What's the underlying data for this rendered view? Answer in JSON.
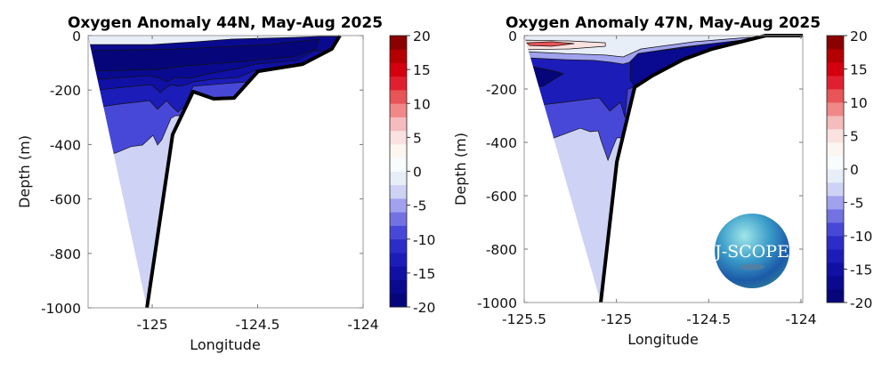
{
  "chart_data": [
    {
      "type": "filled-contour",
      "title": "Oxygen Anomaly 44N, May-Aug 2025",
      "xlabel": "Longitude",
      "ylabel": "Depth (m)",
      "xlim": [
        -125.304,
        -124.0
      ],
      "ylim": [
        -1000,
        0
      ],
      "xticks": [
        -125,
        -124.5,
        -124
      ],
      "xtick_labels": [
        "-125",
        "-124.5",
        "-124"
      ],
      "yticks": [
        0,
        -200,
        -400,
        -600,
        -800,
        -1000
      ],
      "ytick_labels": [
        "0",
        "-200",
        "-400",
        "-600",
        "-800",
        "-1000"
      ],
      "base_level": -3,
      "bathymetry": [
        [
          -125.304,
          0
        ],
        [
          -124.11,
          0
        ],
        [
          -124.148,
          -49
        ],
        [
          -124.287,
          -105
        ],
        [
          -124.498,
          -131
        ],
        [
          -124.612,
          -229
        ],
        [
          -124.709,
          -232
        ],
        [
          -124.806,
          -206
        ],
        [
          -124.903,
          -363
        ],
        [
          -125.025,
          -1000
        ]
      ],
      "layers": [
        {
          "level": -9,
          "boundary": [
            [
              -125.3,
              -451
            ],
            [
              -125.173,
              -431
            ],
            [
              -125.101,
              -408
            ],
            [
              -125.046,
              -402
            ],
            [
              -124.996,
              -366
            ],
            [
              -124.975,
              -402
            ],
            [
              -124.954,
              -382
            ],
            [
              -124.911,
              -304
            ],
            [
              -124.89,
              -294
            ]
          ]
        },
        {
          "level": -13,
          "boundary": [
            [
              -125.3,
              -268
            ],
            [
              -125.16,
              -252
            ],
            [
              -125.013,
              -239
            ],
            [
              -124.975,
              -271
            ],
            [
              -124.932,
              -239
            ],
            [
              -124.907,
              -261
            ],
            [
              -124.878,
              -281
            ],
            [
              -124.848,
              -261
            ],
            [
              -124.806,
              -186
            ],
            [
              -124.553,
              -170
            ],
            [
              -124.527,
              -154
            ]
          ]
        },
        {
          "level": -15,
          "boundary": [
            [
              -125.3,
              -203
            ],
            [
              -125.089,
              -186
            ],
            [
              -125.004,
              -180
            ],
            [
              -124.962,
              -209
            ],
            [
              -124.932,
              -190
            ],
            [
              -124.907,
              -180
            ],
            [
              -124.878,
              -186
            ],
            [
              -124.835,
              -180
            ],
            [
              -124.806,
              -170
            ],
            [
              -124.709,
              -160
            ],
            [
              -124.595,
              -154
            ],
            [
              -124.54,
              -137
            ],
            [
              -124.511,
              -127
            ]
          ]
        },
        {
          "level": -17,
          "boundary": [
            [
              -125.3,
              -163
            ],
            [
              -125.017,
              -147
            ],
            [
              -124.962,
              -157
            ],
            [
              -124.932,
              -170
            ],
            [
              -124.89,
              -154
            ],
            [
              -124.823,
              -157
            ],
            [
              -124.738,
              -141
            ],
            [
              -124.595,
              -121
            ],
            [
              -124.511,
              -105
            ],
            [
              -124.316,
              -92
            ],
            [
              -124.232,
              -56
            ]
          ]
        },
        {
          "level": -19,
          "polygon": [
            [
              -125.3,
              -56
            ],
            [
              -124.878,
              -49
            ],
            [
              -124.456,
              -33
            ],
            [
              -124.211,
              -13
            ],
            [
              -124.219,
              -49
            ],
            [
              -124.329,
              -78
            ],
            [
              -124.624,
              -98
            ],
            [
              -124.878,
              -114
            ],
            [
              -124.962,
              -124
            ],
            [
              -125.3,
              -131
            ]
          ]
        },
        {
          "level": -1,
          "boundary": [
            [
              -125.3,
              -33
            ],
            [
              -125.004,
              -33
            ],
            [
              -124.793,
              -23
            ],
            [
              -124.624,
              -13
            ],
            [
              -124.329,
              -7
            ],
            [
              -124.203,
              -3
            ]
          ]
        }
      ]
    },
    {
      "type": "filled-contour",
      "title": "Oxygen Anomaly 47N, May-Aug 2025",
      "xlabel": "Longitude",
      "ylabel": "Depth (m)",
      "xlim": [
        -125.5,
        -123.99
      ],
      "ylim": [
        -1000,
        0
      ],
      "xticks": [
        -125.5,
        -125,
        -124.5,
        -124
      ],
      "xtick_labels": [
        "-125.5",
        "-125",
        "-124.5",
        "-124"
      ],
      "yticks": [
        0,
        -200,
        -400,
        -600,
        -800,
        -1000
      ],
      "ytick_labels": [
        "0",
        "-200",
        "-400",
        "-600",
        "-800",
        "-1000"
      ],
      "base_level": -3,
      "bathymetry": [
        [
          -125.5,
          0
        ],
        [
          -123.99,
          0
        ],
        [
          -124.191,
          0
        ],
        [
          -124.481,
          -50
        ],
        [
          -124.64,
          -90
        ],
        [
          -124.804,
          -150
        ],
        [
          -124.901,
          -193
        ],
        [
          -124.998,
          -473
        ],
        [
          -125.085,
          -1000
        ]
      ],
      "layers": [
        {
          "level": -9,
          "boundary": [
            [
              -125.5,
              -410
            ],
            [
              -125.365,
              -390
            ],
            [
              -125.196,
              -347
            ],
            [
              -125.143,
              -360
            ],
            [
              -125.099,
              -357
            ],
            [
              -125.085,
              -390
            ],
            [
              -125.046,
              -467
            ],
            [
              -125.022,
              -423
            ],
            [
              -124.998,
              -383
            ]
          ]
        },
        {
          "level": -13,
          "boundary": [
            [
              -125.5,
              -267
            ],
            [
              -125.287,
              -250
            ],
            [
              -125.094,
              -233
            ],
            [
              -125.036,
              -283
            ],
            [
              -124.978,
              -250
            ],
            [
              -124.954,
              -307
            ],
            [
              -124.94,
              -200
            ],
            [
              -124.901,
              -193
            ]
          ]
        },
        {
          "level": -19,
          "polygon": [
            [
              -125.5,
              -107
            ],
            [
              -125.5,
              -193
            ],
            [
              -125.399,
              -190
            ],
            [
              -125.287,
              -143
            ],
            [
              -125.336,
              -133
            ],
            [
              -125.447,
              -117
            ]
          ]
        },
        {
          "level": -17,
          "polygon": [
            [
              -124.925,
              -67
            ],
            [
              -124.674,
              -50
            ],
            [
              -124.384,
              -20
            ],
            [
              -124.181,
              0
            ],
            [
              -124.481,
              -50
            ],
            [
              -124.64,
              -90
            ],
            [
              -124.804,
              -150
            ],
            [
              -124.901,
              -193
            ],
            [
              -124.925,
              -167
            ]
          ]
        },
        {
          "level": -5,
          "boundary": [
            [
              -125.5,
              -83
            ],
            [
              -125.287,
              -90
            ],
            [
              -125.123,
              -93
            ],
            [
              -125.027,
              -100
            ],
            [
              -124.964,
              -107
            ],
            [
              -124.93,
              -100
            ],
            [
              -124.882,
              -67
            ],
            [
              -124.64,
              -43
            ],
            [
              -124.321,
              -17
            ],
            [
              -124.191,
              -3
            ]
          ]
        },
        {
          "level": -1,
          "boundary": [
            [
              -125.5,
              -60
            ],
            [
              -125.287,
              -67
            ],
            [
              -125.06,
              -73
            ],
            [
              -124.964,
              -80
            ],
            [
              -124.867,
              -50
            ],
            [
              -124.577,
              -23
            ],
            [
              -124.287,
              -7
            ]
          ]
        },
        {
          "level": 5,
          "polygon": [
            [
              -125.5,
              -17
            ],
            [
              -125.254,
              -20
            ],
            [
              -125.06,
              -27
            ],
            [
              -125.06,
              -40
            ],
            [
              -125.254,
              -50
            ],
            [
              -125.5,
              -53
            ]
          ]
        },
        {
          "level": 11,
          "polygon": [
            [
              -125.486,
              -27
            ],
            [
              -125.35,
              -23
            ],
            [
              -125.229,
              -30
            ],
            [
              -125.35,
              -40
            ],
            [
              -125.471,
              -37
            ]
          ]
        }
      ]
    }
  ],
  "colorbar": {
    "min": -20,
    "max": 20,
    "step": 2,
    "ticks": [
      20,
      15,
      10,
      5,
      0,
      -5,
      -10,
      -15,
      -20
    ],
    "tick_labels": [
      "20",
      "15",
      "10",
      "5",
      "0",
      "-5",
      "-10",
      "-15",
      "-20"
    ],
    "colors": [
      "#06067a",
      "#0a0a90",
      "#1010a4",
      "#1c1cb8",
      "#2c2cc8",
      "#4848d8",
      "#7272e2",
      "#a0a2ee",
      "#ced2f4",
      "#e8eef8",
      "#f8fcfc",
      "#fdf6f0",
      "#f9e2e0",
      "#f4bcbc",
      "#f08888",
      "#e85458",
      "#e02030",
      "#d40010",
      "#b40000",
      "#8b0000"
    ]
  },
  "logo": {
    "text": "J-SCOPE"
  }
}
